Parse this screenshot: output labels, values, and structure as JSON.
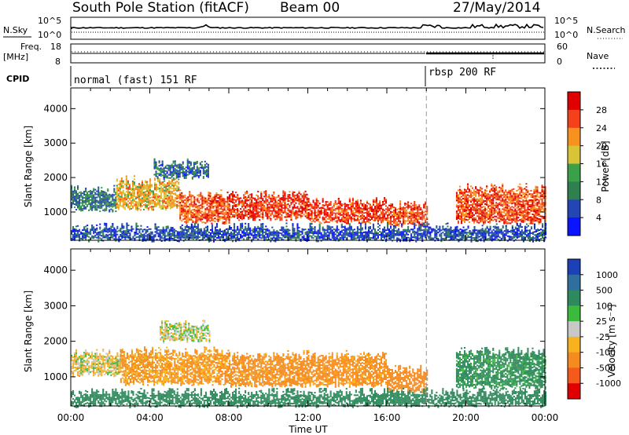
{
  "header": {
    "station": "South Pole Station (fitACF)",
    "beam": "Beam 00",
    "date": "27/May/2014"
  },
  "top_panels": {
    "nsky_label": "N.Sky",
    "nsky_ticks": [
      "10^5",
      "10^0"
    ],
    "nsearch_label": "N.Search",
    "nsearch_ticks": [
      "10^5",
      "10^0"
    ],
    "freq_label": "Freq.",
    "freq_unit": "[MHz]",
    "freq_ticks": [
      "18",
      "8"
    ],
    "nave_label": "Nave",
    "nave_ticks": [
      "60",
      "0"
    ],
    "cpid_label": "CPID",
    "cpid_segments": [
      {
        "label": "normal (fast) 151 RF",
        "start_hour": 0.0
      },
      {
        "label": "rbsp 200 RF",
        "start_hour": 18.0
      }
    ]
  },
  "chart_data": [
    {
      "type": "heatmap",
      "name": "power",
      "ylabel": "Slant Range [km]",
      "xlabel": "",
      "ylim": [
        180,
        4600
      ],
      "yticks": [
        1000,
        2000,
        3000,
        4000
      ],
      "xlim_hours": [
        0,
        24
      ],
      "xticks": [
        "00:00",
        "04:00",
        "08:00",
        "12:00",
        "16:00",
        "20:00",
        "00:00"
      ],
      "colorbar": {
        "label": "Power [dB]",
        "ticks": [
          "4",
          "8",
          "12",
          "16",
          "20",
          "24",
          "28"
        ],
        "colors": [
          "#0a14ff",
          "#2346b4",
          "#2f7f4f",
          "#3aa04a",
          "#d8c436",
          "#f7921e",
          "#f5401c",
          "#e00000"
        ]
      },
      "bands": [
        {
          "t": [
            0.0,
            2.3
          ],
          "range": [
            1050,
            1650
          ],
          "value": 9
        },
        {
          "t": [
            2.3,
            5.5
          ],
          "range": [
            1100,
            1900
          ],
          "value": 20
        },
        {
          "t": [
            4.2,
            7.0
          ],
          "range": [
            2000,
            2400
          ],
          "value": 8
        },
        {
          "t": [
            5.5,
            8.0
          ],
          "range": [
            700,
            1500
          ],
          "value": 25
        },
        {
          "t": [
            8.0,
            12.0
          ],
          "range": [
            800,
            1500
          ],
          "value": 27
        },
        {
          "t": [
            12.0,
            16.0
          ],
          "range": [
            700,
            1300
          ],
          "value": 27
        },
        {
          "t": [
            16.0,
            18.0
          ],
          "range": [
            600,
            1200
          ],
          "value": 26
        },
        {
          "t": [
            19.5,
            24.0
          ],
          "range": [
            700,
            1700
          ],
          "value": 26
        },
        {
          "t": [
            0.0,
            24.0
          ],
          "range": [
            180,
            550
          ],
          "value": 6
        }
      ]
    },
    {
      "type": "heatmap",
      "name": "velocity",
      "ylabel": "Slant Range [km]",
      "xlabel": "Time UT",
      "ylim": [
        180,
        4600
      ],
      "yticks": [
        1000,
        2000,
        3000,
        4000
      ],
      "xlim_hours": [
        0,
        24
      ],
      "xticks": [
        "00:00",
        "04:00",
        "08:00",
        "12:00",
        "16:00",
        "20:00",
        "00:00"
      ],
      "colorbar": {
        "label": "Velocity [m s⁻¹]",
        "ticks": [
          "1000",
          "500",
          "100",
          "25",
          "-25",
          "-100",
          "-500",
          "-1000"
        ],
        "colors": [
          "#1b40b8",
          "#2f6fa0",
          "#2e8a5c",
          "#3bbb3b",
          "#c8c8c8",
          "#f7b21e",
          "#f58a1e",
          "#f55a1c",
          "#e00000"
        ]
      },
      "bands": [
        {
          "t": [
            0.0,
            2.5
          ],
          "range": [
            1050,
            1650
          ],
          "value": -30
        },
        {
          "t": [
            2.5,
            8.0
          ],
          "range": [
            800,
            1700
          ],
          "value": -120
        },
        {
          "t": [
            4.5,
            7.0
          ],
          "range": [
            2000,
            2450
          ],
          "value": 0
        },
        {
          "t": [
            8.0,
            16.0
          ],
          "range": [
            750,
            1600
          ],
          "value": -150
        },
        {
          "t": [
            16.0,
            18.0
          ],
          "range": [
            600,
            1200
          ],
          "value": -200
        },
        {
          "t": [
            19.5,
            24.0
          ],
          "range": [
            700,
            1700
          ],
          "value": 150
        },
        {
          "t": [
            0.0,
            24.0
          ],
          "range": [
            180,
            550
          ],
          "value": 200
        }
      ]
    }
  ]
}
